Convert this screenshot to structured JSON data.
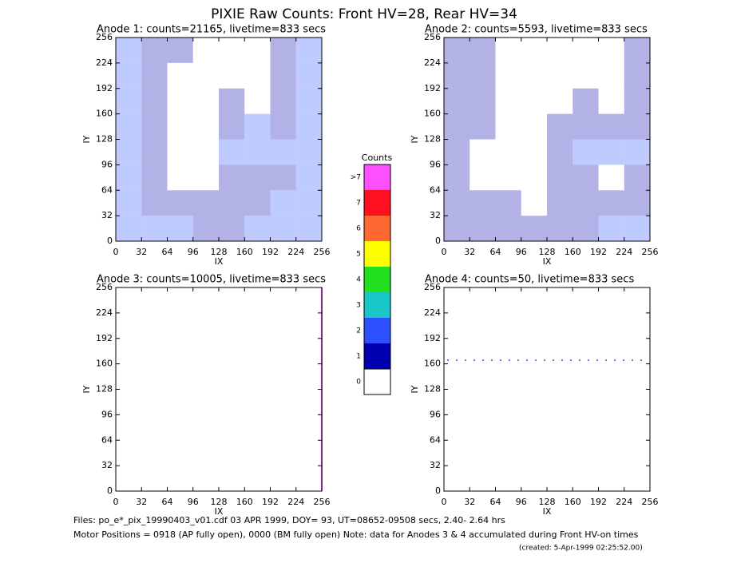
{
  "title": "PIXIE Raw Counts:  Front HV=28, Rear HV=34",
  "colorbar": {
    "title": "Counts",
    "labels": [
      ">7",
      7,
      6,
      5,
      4,
      3,
      2,
      1,
      0
    ],
    "colors": [
      "#ff50ff",
      "#ff1020",
      "#ff6830",
      "#ffff00",
      "#20e020",
      "#18c8c8",
      "#2a50ff",
      "#0000b0",
      "#ffffff"
    ]
  },
  "chart_data": [
    {
      "type": "heatmap",
      "title": "Anode 1: counts=21165, livetime=833 secs",
      "xlabel": "IX",
      "ylabel": "IY",
      "xlim": [
        0,
        256
      ],
      "ylim": [
        0,
        256
      ],
      "xticks": [
        0,
        32,
        64,
        96,
        128,
        160,
        192,
        224,
        256
      ],
      "yticks": [
        0,
        32,
        64,
        96,
        128,
        160,
        192,
        224,
        256
      ],
      "z": [
        [
          2,
          1,
          1,
          0,
          0,
          0,
          1,
          2
        ],
        [
          2,
          1,
          0,
          0,
          0,
          0,
          1,
          2
        ],
        [
          2,
          1,
          0,
          0,
          1,
          0,
          1,
          2
        ],
        [
          2,
          1,
          0,
          0,
          1,
          2,
          1,
          2
        ],
        [
          2,
          1,
          0,
          0,
          2,
          2,
          2,
          2
        ],
        [
          2,
          1,
          0,
          0,
          1,
          1,
          1,
          2
        ],
        [
          2,
          1,
          1,
          1,
          1,
          1,
          2,
          2
        ],
        [
          2,
          2,
          2,
          1,
          1,
          2,
          2,
          2
        ]
      ]
    },
    {
      "type": "heatmap",
      "title": "Anode 2: counts=5593, livetime=833 secs",
      "xlabel": "IX",
      "ylabel": "IY",
      "xlim": [
        0,
        256
      ],
      "ylim": [
        0,
        256
      ],
      "xticks": [
        0,
        32,
        64,
        96,
        128,
        160,
        192,
        224,
        256
      ],
      "yticks": [
        0,
        32,
        64,
        96,
        128,
        160,
        192,
        224,
        256
      ],
      "z": [
        [
          1,
          1,
          0,
          0,
          0,
          0,
          0,
          1
        ],
        [
          1,
          1,
          0,
          0,
          0,
          0,
          0,
          1
        ],
        [
          1,
          1,
          0,
          0,
          0,
          1,
          0,
          1
        ],
        [
          1,
          1,
          0,
          0,
          1,
          1,
          1,
          1
        ],
        [
          1,
          0,
          0,
          0,
          1,
          2,
          2,
          2
        ],
        [
          1,
          0,
          0,
          0,
          1,
          1,
          0,
          1
        ],
        [
          1,
          1,
          1,
          0,
          1,
          1,
          1,
          1
        ],
        [
          1,
          1,
          1,
          1,
          1,
          1,
          2,
          2
        ]
      ]
    },
    {
      "type": "heatmap",
      "title": "Anode 3: counts=10005, livetime=833 secs",
      "xlabel": "IX",
      "ylabel": "IY",
      "xlim": [
        0,
        256
      ],
      "ylim": [
        0,
        256
      ],
      "xticks": [
        0,
        32,
        64,
        96,
        128,
        160,
        192,
        224,
        256
      ],
      "yticks": [
        0,
        32,
        64,
        96,
        128,
        160,
        192,
        224,
        256
      ]
    },
    {
      "type": "heatmap",
      "title": "Anode 4: counts=50, livetime=833 secs",
      "xlabel": "IX",
      "ylabel": "IY",
      "xlim": [
        0,
        256
      ],
      "ylim": [
        0,
        256
      ],
      "xticks": [
        0,
        32,
        64,
        96,
        128,
        160,
        192,
        224,
        256
      ],
      "yticks": [
        0,
        32,
        64,
        96,
        128,
        160,
        192,
        224,
        256
      ]
    }
  ],
  "footer": [
    "Files: po_e*_pix_19990403_v01.cdf    03 APR 1999, DOY= 93, UT=08652-09508 secs,  2.40- 2.64 hrs",
    "Motor Positions = 0918 (AP fully open), 0000 (BM fully open)    Note: data for Anodes 3 & 4 accumulated during Front HV-on times",
    "(created:  5-Apr-1999 02:25:52.00)"
  ]
}
